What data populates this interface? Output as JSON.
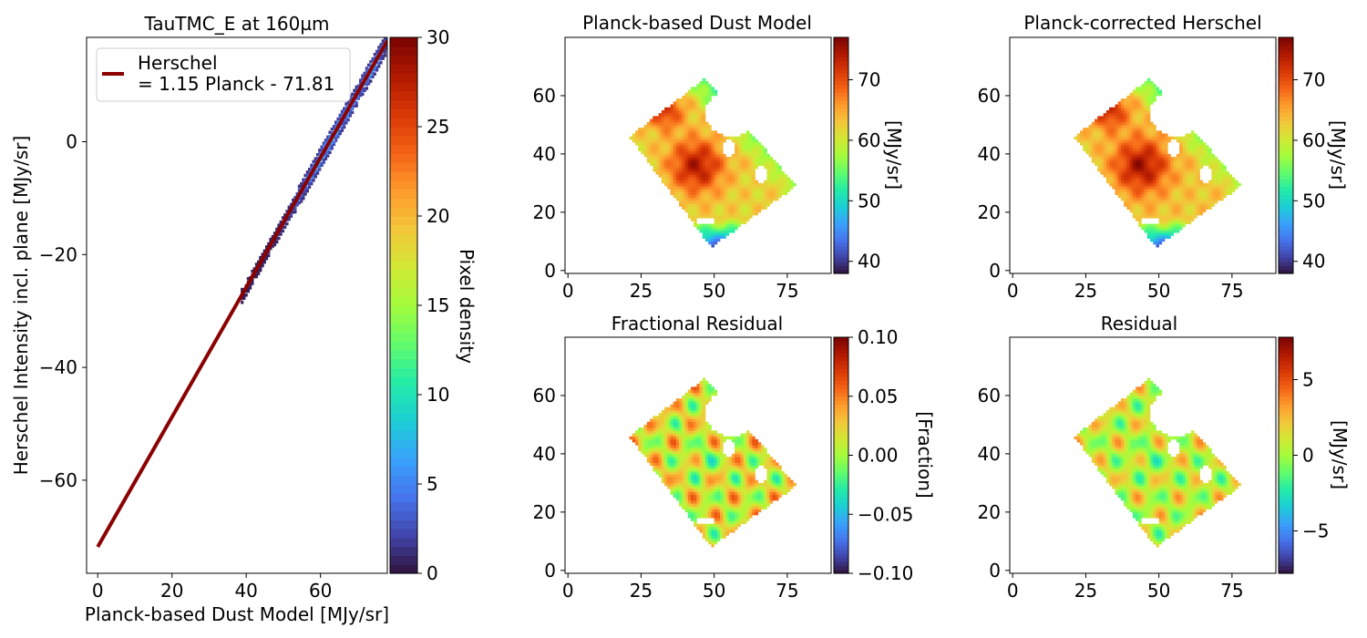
{
  "colormap": [
    "#30123b",
    "#4145ab",
    "#4675ed",
    "#39a2fc",
    "#1bcfd4",
    "#24eca6",
    "#61fc6c",
    "#a4fc3b",
    "#d1e834",
    "#f3c63a",
    "#fe9b2d",
    "#f36315",
    "#d93806",
    "#b11901",
    "#7a0402"
  ],
  "chart_data": [
    {
      "id": "scatter",
      "type": "heatmap",
      "title": "TauTMC_E at 160µm",
      "xlabel": "Planck-based Dust Model [MJy/sr]",
      "ylabel": "Herschel Intensity incl. plane [MJy/sr]",
      "xlim": [
        -3,
        78
      ],
      "ylim": [
        -76.5,
        18.5
      ],
      "xticks": [
        0,
        20,
        40,
        60
      ],
      "yticks": [
        -60,
        -40,
        -20,
        0
      ],
      "fit": {
        "slope": 1.15,
        "intercept": -71.81,
        "x_range": [
          0,
          78
        ],
        "color": "#8b0000"
      },
      "legend": {
        "label_line1": "Herschel",
        "label_line2": "= 1.15 Planck - 71.81",
        "placement": "upper left"
      },
      "density_x_range": [
        38.5,
        78
      ],
      "colorbar": {
        "label": "Pixel density",
        "range": [
          0,
          30
        ],
        "ticks": [
          0,
          5,
          10,
          15,
          20,
          25,
          30
        ]
      }
    },
    {
      "id": "dust_model",
      "type": "heatmap",
      "title": "Planck-based Dust Model",
      "xlim": [
        -1,
        90
      ],
      "ylim": [
        -1,
        80
      ],
      "xticks": [
        0,
        25,
        50,
        75
      ],
      "yticks": [
        0,
        20,
        40,
        60
      ],
      "colorbar": {
        "label": "[MJy/sr]",
        "range": [
          38,
          77
        ],
        "ticks": [
          40,
          50,
          60,
          70
        ]
      }
    },
    {
      "id": "corrected",
      "type": "heatmap",
      "title": "Planck-corrected Herschel",
      "xlim": [
        -1,
        90
      ],
      "ylim": [
        -1,
        80
      ],
      "xticks": [
        0,
        25,
        50,
        75
      ],
      "yticks": [
        0,
        20,
        40,
        60
      ],
      "colorbar": {
        "label": "[MJy/sr]",
        "range": [
          38,
          77
        ],
        "ticks": [
          40,
          50,
          60,
          70
        ]
      }
    },
    {
      "id": "frac_residual",
      "type": "heatmap",
      "title": "Fractional Residual",
      "xlim": [
        -1,
        90
      ],
      "ylim": [
        -1,
        80
      ],
      "xticks": [
        0,
        25,
        50,
        75
      ],
      "yticks": [
        0,
        20,
        40,
        60
      ],
      "colorbar": {
        "label": "[Fraction]",
        "range": [
          -0.1,
          0.1
        ],
        "ticks": [
          -0.1,
          -0.05,
          0.0,
          0.05,
          0.1
        ],
        "tick_labels": [
          "−0.10",
          "−0.05",
          "0.00",
          "0.05",
          "0.10"
        ]
      }
    },
    {
      "id": "residual",
      "type": "heatmap",
      "title": "Residual",
      "xlim": [
        -1,
        90
      ],
      "ylim": [
        -1,
        80
      ],
      "xticks": [
        0,
        25,
        50,
        75
      ],
      "yticks": [
        0,
        20,
        40,
        60
      ],
      "colorbar": {
        "label": "[MJy/sr]",
        "range": [
          -7.8,
          7.8
        ],
        "ticks": [
          -5,
          0,
          5
        ],
        "tick_labels": [
          "−5",
          "0",
          "5"
        ]
      }
    }
  ],
  "map_region": {
    "footprint": [
      [
        21,
        46
      ],
      [
        47,
        66
      ],
      [
        78,
        29
      ],
      [
        49,
        8
      ]
    ],
    "holes": [
      {
        "cx": 56,
        "cy": 54,
        "rx": 9,
        "ry": 8
      },
      {
        "cx": 55,
        "cy": 42,
        "rx": 2,
        "ry": 3
      },
      {
        "cx": 66,
        "cy": 33,
        "rx": 2,
        "ry": 3
      },
      {
        "cx": 47,
        "cy": 17,
        "rx": 3,
        "ry": 1.3
      }
    ]
  }
}
